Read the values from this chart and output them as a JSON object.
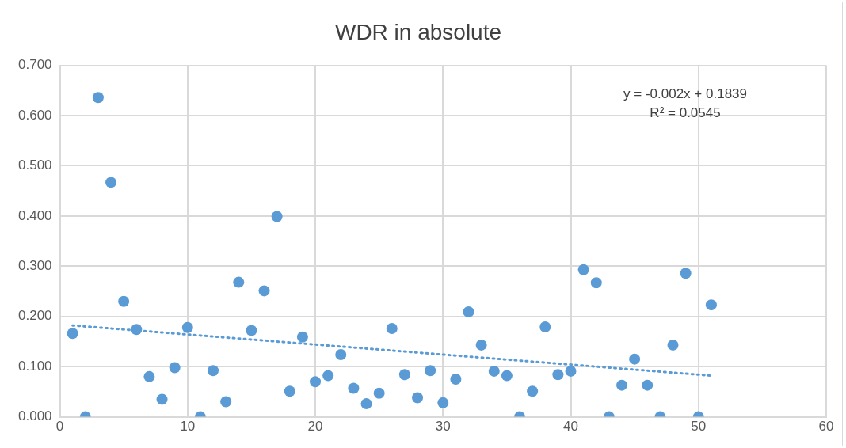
{
  "chart_data": {
    "type": "scatter",
    "title": "WDR in absolute",
    "x": [
      1,
      2,
      3,
      4,
      5,
      6,
      7,
      8,
      9,
      10,
      11,
      12,
      13,
      14,
      15,
      16,
      17,
      18,
      19,
      20,
      21,
      22,
      23,
      24,
      25,
      26,
      27,
      28,
      29,
      30,
      31,
      32,
      33,
      34,
      35,
      36,
      37,
      38,
      39,
      40,
      41,
      42,
      43,
      44,
      45,
      46,
      47,
      48,
      49,
      50,
      51
    ],
    "series": [
      {
        "color": "#5b9bd5",
        "marker": "circle",
        "values": [
          0.166,
          0,
          0.636,
          0.467,
          0.23,
          0.174,
          0.08,
          0.035,
          0.098,
          0.178,
          0,
          0.092,
          0.03,
          0.268,
          0.172,
          0.251,
          0.399,
          0.051,
          0.159,
          0.07,
          0.082,
          0.124,
          0.057,
          0.026,
          0.047,
          0.176,
          0.084,
          0.038,
          0.092,
          0.028,
          0.075,
          0.209,
          0.143,
          0.091,
          0.082,
          0,
          0.051,
          0.179,
          0.084,
          0.091,
          0.293,
          0.267,
          0,
          0.063,
          0.115,
          0.063,
          0,
          0.143,
          0.286,
          0,
          0.223
        ]
      },
      {
        "type": "line",
        "color": "#5b9bd5",
        "line_style": "dotted",
        "marker": "none",
        "x": [
          1,
          51
        ],
        "values": [
          0.182,
          0.082
        ]
      }
    ],
    "xlim": [
      0,
      60
    ],
    "xticks": [
      0,
      10,
      20,
      30,
      40,
      50,
      60
    ],
    "ylim": [
      0,
      0.7
    ],
    "yticks": [
      {
        "value": 0,
        "label": "0.000"
      },
      {
        "value": 0.1,
        "label": "0.100"
      },
      {
        "value": 0.2,
        "label": "0.200"
      },
      {
        "value": 0.3,
        "label": "0.300"
      },
      {
        "value": 0.4,
        "label": "0.400"
      },
      {
        "value": 0.5,
        "label": "0.500"
      },
      {
        "value": 0.6,
        "label": "0.600"
      },
      {
        "value": 0.7,
        "label": "0.700"
      }
    ],
    "grid": true,
    "legend": false,
    "annotations": [
      "y = -0.002x + 0.1839",
      "R² = 0.0545"
    ]
  }
}
